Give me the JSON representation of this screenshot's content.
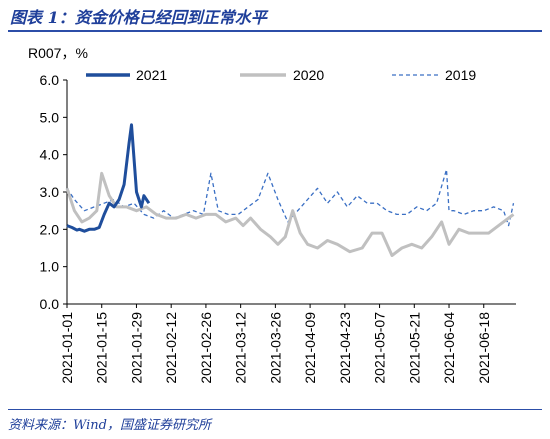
{
  "header": {
    "title": "图表 1：资金价格已经回到正常水平"
  },
  "footer": {
    "source": "资料来源：Wind，国盛证券研究所"
  },
  "chart_data": {
    "type": "line",
    "ylabel": "R007，%",
    "ylim": [
      0,
      6
    ],
    "yticks": [
      "0.0",
      "1.0",
      "2.0",
      "3.0",
      "4.0",
      "5.0",
      "6.0"
    ],
    "xlim": [
      "2021-01-01",
      "2021-07-01"
    ],
    "xticks": [
      "2021-01-01",
      "2021-01-15",
      "2021-01-29",
      "2021-02-12",
      "2021-02-26",
      "2021-03-12",
      "2021-03-26",
      "2021-04-09",
      "2021-04-23",
      "2021-05-07",
      "2021-05-21",
      "2021-06-04",
      "2021-06-18"
    ],
    "grid": false,
    "legend": "top",
    "series": [
      {
        "name": "2021",
        "color": "#1f4e9c",
        "style": "solid",
        "x": [
          "2021-01-01",
          "2021-01-03",
          "2021-01-05",
          "2021-01-06",
          "2021-01-08",
          "2021-01-10",
          "2021-01-12",
          "2021-01-14",
          "2021-01-16",
          "2021-01-18",
          "2021-01-20",
          "2021-01-22",
          "2021-01-24",
          "2021-01-26",
          "2021-01-27",
          "2021-01-28",
          "2021-01-29",
          "2021-01-31",
          "2021-02-01",
          "2021-02-03"
        ],
        "values": [
          2.1,
          2.05,
          1.98,
          2.0,
          1.95,
          2.0,
          2.0,
          2.05,
          2.4,
          2.7,
          2.6,
          2.8,
          3.2,
          4.3,
          4.8,
          3.9,
          3.0,
          2.6,
          2.9,
          2.7
        ]
      },
      {
        "name": "2020",
        "color": "#c0c0c0",
        "style": "solid",
        "x": [
          "2021-01-01",
          "2021-01-04",
          "2021-01-07",
          "2021-01-10",
          "2021-01-13",
          "2021-01-15",
          "2021-01-18",
          "2021-01-21",
          "2021-01-25",
          "2021-01-29",
          "2021-02-02",
          "2021-02-06",
          "2021-02-10",
          "2021-02-14",
          "2021-02-18",
          "2021-02-22",
          "2021-02-26",
          "2021-03-02",
          "2021-03-06",
          "2021-03-10",
          "2021-03-13",
          "2021-03-16",
          "2021-03-20",
          "2021-03-24",
          "2021-03-27",
          "2021-03-30",
          "2021-04-02",
          "2021-04-05",
          "2021-04-08",
          "2021-04-12",
          "2021-04-16",
          "2021-04-20",
          "2021-04-25",
          "2021-04-30",
          "2021-05-02",
          "2021-05-04",
          "2021-05-08",
          "2021-05-12",
          "2021-05-16",
          "2021-05-20",
          "2021-05-24",
          "2021-05-28",
          "2021-06-01",
          "2021-06-04",
          "2021-06-08",
          "2021-06-12",
          "2021-06-16",
          "2021-06-20",
          "2021-06-24",
          "2021-06-28",
          "2021-06-30"
        ],
        "values": [
          3.1,
          2.5,
          2.2,
          2.3,
          2.5,
          3.5,
          2.9,
          2.6,
          2.6,
          2.5,
          2.6,
          2.4,
          2.3,
          2.3,
          2.4,
          2.3,
          2.4,
          2.4,
          2.2,
          2.3,
          2.1,
          2.3,
          2.0,
          1.8,
          1.6,
          1.8,
          2.5,
          1.9,
          1.6,
          1.5,
          1.7,
          1.6,
          1.4,
          1.5,
          1.7,
          1.9,
          1.9,
          1.3,
          1.5,
          1.6,
          1.5,
          1.8,
          2.2,
          1.6,
          2.0,
          1.9,
          1.9,
          1.9,
          2.1,
          2.3,
          2.4
        ]
      },
      {
        "name": "2019",
        "color": "#3a6fc4",
        "style": "dashed",
        "x": [
          "2021-01-01",
          "2021-01-04",
          "2021-01-08",
          "2021-01-12",
          "2021-01-16",
          "2021-01-20",
          "2021-01-24",
          "2021-01-28",
          "2021-02-01",
          "2021-02-05",
          "2021-02-09",
          "2021-02-13",
          "2021-02-17",
          "2021-02-21",
          "2021-02-25",
          "2021-02-28",
          "2021-03-03",
          "2021-03-07",
          "2021-03-11",
          "2021-03-15",
          "2021-03-19",
          "2021-03-23",
          "2021-03-27",
          "2021-03-31",
          "2021-04-04",
          "2021-04-08",
          "2021-04-12",
          "2021-04-16",
          "2021-04-20",
          "2021-04-24",
          "2021-04-28",
          "2021-05-02",
          "2021-05-06",
          "2021-05-10",
          "2021-05-14",
          "2021-05-18",
          "2021-05-22",
          "2021-05-26",
          "2021-05-30",
          "2021-06-03",
          "2021-06-04",
          "2021-06-06",
          "2021-06-10",
          "2021-06-14",
          "2021-06-18",
          "2021-06-22",
          "2021-06-26",
          "2021-06-28",
          "2021-06-30"
        ],
        "values": [
          3.1,
          2.8,
          2.5,
          2.6,
          2.7,
          2.8,
          2.6,
          2.7,
          2.4,
          2.3,
          2.5,
          2.3,
          2.4,
          2.5,
          2.4,
          3.5,
          2.5,
          2.4,
          2.4,
          2.6,
          2.8,
          3.5,
          2.8,
          2.2,
          2.5,
          2.8,
          3.1,
          2.7,
          3.0,
          2.6,
          2.9,
          2.7,
          2.7,
          2.5,
          2.4,
          2.4,
          2.6,
          2.5,
          2.7,
          3.6,
          2.5,
          2.5,
          2.4,
          2.5,
          2.5,
          2.6,
          2.5,
          2.1,
          2.7
        ]
      }
    ]
  }
}
